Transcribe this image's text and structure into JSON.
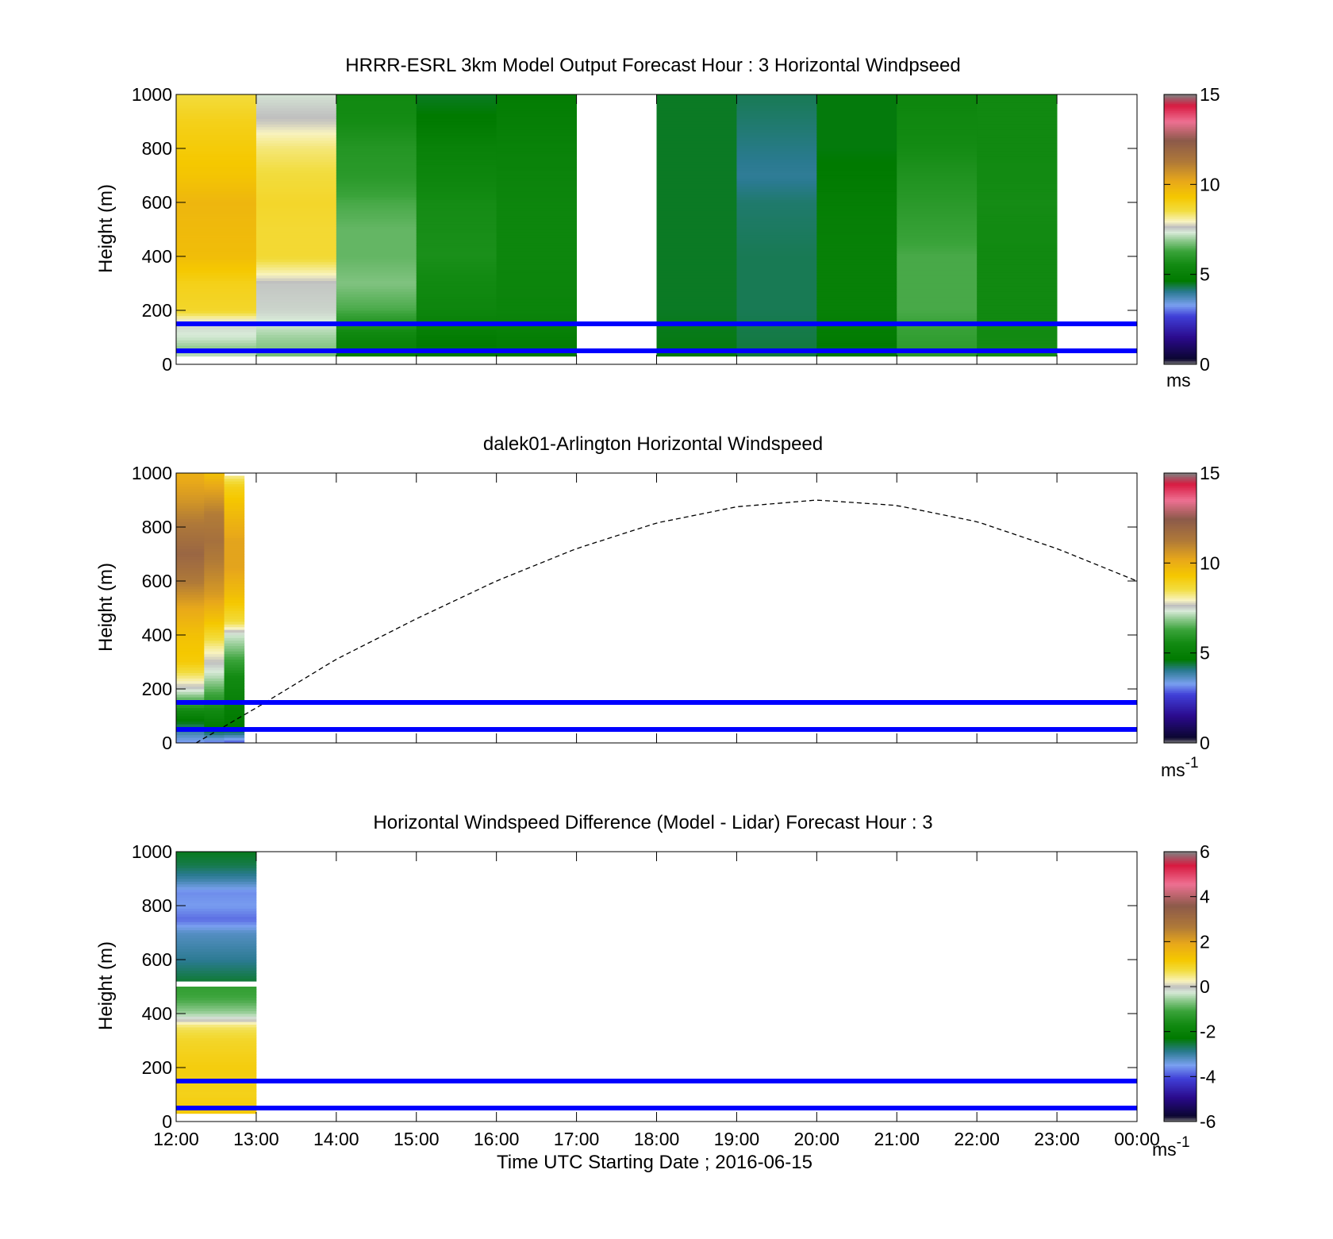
{
  "figure": {
    "xlabel": "Time UTC  Starting Date ; 2016-06-15",
    "x_ticks": [
      "12:00",
      "13:00",
      "14:00",
      "15:00",
      "16:00",
      "17:00",
      "18:00",
      "19:00",
      "20:00",
      "21:00",
      "22:00",
      "23:00",
      "00:00"
    ]
  },
  "colors": {
    "reference_lines": "#0000ff",
    "trajectory_line": "#000000"
  },
  "chart_data": [
    {
      "type": "heatmap",
      "title": "HRRR-ESRL 3km Model Output   Forecast Hour : 3 Horizontal Windpseed",
      "ylabel": "Height (m)",
      "ylim": [
        0,
        1000
      ],
      "y_ticks": [
        "0",
        "200",
        "400",
        "600",
        "800",
        "1000"
      ],
      "x_hours": [
        12,
        24
      ],
      "colorbar": {
        "range": [
          0,
          15
        ],
        "ticks": [
          "0",
          "5",
          "10",
          "15"
        ],
        "unit": "ms",
        "unit_sup": "",
        "scheme": "speed"
      },
      "reference_lines_m": [
        150,
        50
      ],
      "columns": [
        {
          "t0": 12.0,
          "t1": 13.0,
          "z0": 30,
          "z1": 1000,
          "profile": [
            [
              30,
              7.2
            ],
            [
              60,
              6.9
            ],
            [
              100,
              7.3
            ],
            [
              150,
              7.5
            ],
            [
              200,
              8.8
            ],
            [
              300,
              9.0
            ],
            [
              400,
              9.6
            ],
            [
              500,
              9.7
            ],
            [
              600,
              9.8
            ],
            [
              700,
              9.4
            ],
            [
              800,
              9.2
            ],
            [
              900,
              9.0
            ],
            [
              1000,
              8.6
            ]
          ]
        },
        {
          "t0": 13.0,
          "t1": 14.0,
          "z0": 30,
          "z1": 1000,
          "profile": [
            [
              30,
              6.7
            ],
            [
              100,
              7.0
            ],
            [
              150,
              7.3
            ],
            [
              200,
              7.5
            ],
            [
              300,
              7.6
            ],
            [
              400,
              8.7
            ],
            [
              500,
              8.7
            ],
            [
              600,
              8.8
            ],
            [
              700,
              8.6
            ],
            [
              800,
              8.3
            ],
            [
              900,
              7.7
            ],
            [
              1000,
              7.4
            ]
          ]
        },
        {
          "t0": 14.0,
          "t1": 15.0,
          "z0": 30,
          "z1": 1000,
          "profile": [
            [
              30,
              4.9
            ],
            [
              100,
              5.3
            ],
            [
              200,
              6.4
            ],
            [
              300,
              6.8
            ],
            [
              400,
              6.6
            ],
            [
              500,
              6.6
            ],
            [
              600,
              6.4
            ],
            [
              700,
              6.0
            ],
            [
              800,
              5.9
            ],
            [
              900,
              5.6
            ],
            [
              1000,
              5.5
            ]
          ]
        },
        {
          "t0": 15.0,
          "t1": 16.0,
          "z0": 30,
          "z1": 1000,
          "profile": [
            [
              30,
              4.6
            ],
            [
              100,
              4.8
            ],
            [
              200,
              5.3
            ],
            [
              400,
              5.7
            ],
            [
              600,
              5.6
            ],
            [
              700,
              5.3
            ],
            [
              800,
              5.1
            ],
            [
              900,
              4.7
            ],
            [
              1000,
              4.5
            ]
          ]
        },
        {
          "t0": 16.0,
          "t1": 17.0,
          "z0": 30,
          "z1": 1000,
          "profile": [
            [
              30,
              4.7
            ],
            [
              100,
              4.9
            ],
            [
              200,
              5.2
            ],
            [
              400,
              5.3
            ],
            [
              600,
              5.3
            ],
            [
              800,
              5.1
            ],
            [
              1000,
              4.8
            ]
          ]
        },
        {
          "t0": 18.0,
          "t1": 19.0,
          "z0": 30,
          "z1": 1000,
          "profile": [
            [
              30,
              4.6
            ],
            [
              200,
              4.5
            ],
            [
              400,
              4.5
            ],
            [
              600,
              4.5
            ],
            [
              800,
              4.5
            ],
            [
              1000,
              4.5
            ]
          ]
        },
        {
          "t0": 19.0,
          "t1": 20.0,
          "z0": 30,
          "z1": 1000,
          "profile": [
            [
              30,
              4.4
            ],
            [
              200,
              4.3
            ],
            [
              400,
              4.3
            ],
            [
              600,
              4.2
            ],
            [
              700,
              4.0
            ],
            [
              800,
              4.1
            ],
            [
              1000,
              4.3
            ]
          ]
        },
        {
          "t0": 20.0,
          "t1": 21.0,
          "z0": 30,
          "z1": 1000,
          "profile": [
            [
              30,
              4.6
            ],
            [
              200,
              5.0
            ],
            [
              400,
              5.0
            ],
            [
              600,
              4.9
            ],
            [
              700,
              4.7
            ],
            [
              800,
              4.6
            ],
            [
              1000,
              4.6
            ]
          ]
        },
        {
          "t0": 21.0,
          "t1": 22.0,
          "z0": 30,
          "z1": 1000,
          "profile": [
            [
              30,
              6.0
            ],
            [
              200,
              6.4
            ],
            [
              400,
              6.4
            ],
            [
              600,
              6.0
            ],
            [
              800,
              5.6
            ],
            [
              1000,
              5.3
            ]
          ]
        },
        {
          "t0": 22.0,
          "t1": 23.0,
          "z0": 30,
          "z1": 1000,
          "profile": [
            [
              30,
              5.6
            ],
            [
              200,
              5.5
            ],
            [
              400,
              5.5
            ],
            [
              600,
              5.6
            ],
            [
              800,
              5.5
            ],
            [
              1000,
              5.5
            ]
          ]
        }
      ]
    },
    {
      "type": "heatmap",
      "title": "dalek01-Arlington  Horizontal Windspeed",
      "ylabel": "Height (m)",
      "ylim": [
        0,
        1000
      ],
      "y_ticks": [
        "0",
        "200",
        "400",
        "600",
        "800",
        "1000"
      ],
      "x_hours": [
        12,
        24
      ],
      "colorbar": {
        "range": [
          0,
          15
        ],
        "ticks": [
          "0",
          "5",
          "10",
          "15"
        ],
        "unit": "ms",
        "unit_sup": "-1",
        "scheme": "speed"
      },
      "reference_lines_m": [
        150,
        50
      ],
      "trajectory": {
        "style": "dashed",
        "points": [
          [
            12.25,
            0
          ],
          [
            13.0,
            130
          ],
          [
            14.0,
            310
          ],
          [
            15.0,
            460
          ],
          [
            16.0,
            600
          ],
          [
            17.0,
            720
          ],
          [
            18.0,
            815
          ],
          [
            19.0,
            875
          ],
          [
            20.0,
            900
          ],
          [
            21.0,
            880
          ],
          [
            22.0,
            820
          ],
          [
            23.0,
            720
          ],
          [
            24.0,
            600
          ]
        ]
      },
      "columns": [
        {
          "t0": 12.0,
          "t1": 12.35,
          "z0": 0,
          "z1": 1000,
          "profile": [
            [
              0,
              3.2
            ],
            [
              50,
              4.0
            ],
            [
              120,
              5.5
            ],
            [
              200,
              7.5
            ],
            [
              300,
              9.2
            ],
            [
              400,
              9.5
            ],
            [
              500,
              10.2
            ],
            [
              600,
              11.3
            ],
            [
              700,
              12.0
            ],
            [
              800,
              11.4
            ],
            [
              900,
              10.6
            ],
            [
              1000,
              10.0
            ]
          ]
        },
        {
          "t0": 12.35,
          "t1": 12.6,
          "z0": 0,
          "z1": 1000,
          "profile": [
            [
              0,
              3.0
            ],
            [
              50,
              4.6
            ],
            [
              150,
              5.9
            ],
            [
              250,
              7.2
            ],
            [
              350,
              8.1
            ],
            [
              450,
              9.4
            ],
            [
              550,
              10.5
            ],
            [
              650,
              11.1
            ],
            [
              750,
              11.6
            ],
            [
              850,
              11.2
            ],
            [
              950,
              10.2
            ],
            [
              1000,
              9.5
            ]
          ]
        },
        {
          "t0": 12.6,
          "t1": 12.85,
          "z0": 0,
          "z1": 990,
          "profile": [
            [
              0,
              2.8
            ],
            [
              50,
              4.6
            ],
            [
              150,
              5.0
            ],
            [
              250,
              5.6
            ],
            [
              350,
              6.8
            ],
            [
              400,
              7.3
            ],
            [
              450,
              8.6
            ],
            [
              550,
              9.6
            ],
            [
              650,
              10.3
            ],
            [
              750,
              10.3
            ],
            [
              850,
              9.7
            ],
            [
              950,
              9.0
            ],
            [
              990,
              8.2
            ]
          ]
        }
      ]
    },
    {
      "type": "heatmap",
      "title": "Horizontal Windspeed Difference (Model - Lidar) Forecast Hour : 3",
      "ylabel": "Height (m)",
      "ylim": [
        0,
        1000
      ],
      "y_ticks": [
        "0",
        "200",
        "400",
        "600",
        "800",
        "1000"
      ],
      "x_hours": [
        12,
        24
      ],
      "colorbar": {
        "range": [
          -6,
          6
        ],
        "ticks": [
          "-6",
          "-4",
          "-2",
          "0",
          "2",
          "4",
          "6"
        ],
        "unit": "ms",
        "unit_sup": "-1",
        "scheme": "diff"
      },
      "reference_lines_m": [
        150,
        50
      ],
      "columns": [
        {
          "t0": 12.0,
          "t1": 13.0,
          "z0": 30,
          "z1": 500,
          "profile": [
            [
              30,
              1.2
            ],
            [
              100,
              1.0
            ],
            [
              200,
              1.1
            ],
            [
              300,
              0.9
            ],
            [
              350,
              0.6
            ],
            [
              400,
              -0.5
            ],
            [
              450,
              -1.0
            ],
            [
              500,
              -1.2
            ]
          ]
        },
        {
          "t0": 12.0,
          "t1": 13.0,
          "z0": 520,
          "z1": 1000,
          "profile": [
            [
              520,
              -2.5
            ],
            [
              600,
              -2.9
            ],
            [
              700,
              -3.2
            ],
            [
              750,
              -3.8
            ],
            [
              800,
              -3.5
            ],
            [
              850,
              -3.6
            ],
            [
              900,
              -3.0
            ],
            [
              950,
              -2.6
            ],
            [
              1000,
              -2.4
            ]
          ]
        }
      ]
    }
  ]
}
